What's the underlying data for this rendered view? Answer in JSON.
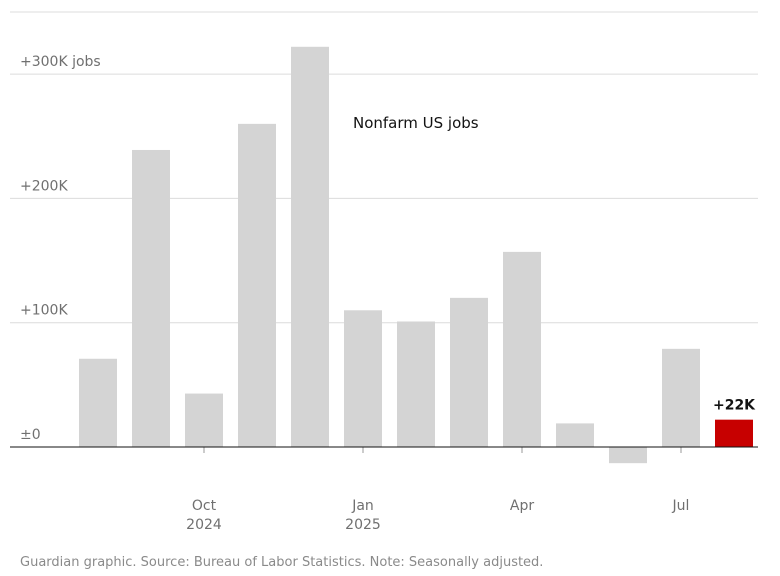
{
  "chart_data": {
    "type": "bar",
    "title": "Nonfarm US jobs",
    "source": "Guardian graphic. Source: Bureau of Labor Statistics. Note: Seasonally adjusted.",
    "categories": [
      null,
      null,
      "Oct",
      null,
      null,
      "Jan",
      null,
      null,
      "Apr",
      null,
      null,
      "Jul",
      null
    ],
    "years": [
      null,
      null,
      "2024",
      null,
      null,
      "2025",
      null,
      null,
      null,
      null,
      null,
      null,
      null
    ],
    "values": [
      71,
      239,
      43,
      260,
      322,
      110,
      101,
      120,
      157,
      19,
      -13,
      79,
      22
    ],
    "value_labels": [
      null,
      null,
      null,
      null,
      null,
      null,
      null,
      null,
      null,
      null,
      null,
      null,
      "+22K"
    ],
    "colors": [
      "#d4d4d4",
      "#d4d4d4",
      "#d4d4d4",
      "#d4d4d4",
      "#d4d4d4",
      "#d4d4d4",
      "#d4d4d4",
      "#d4d4d4",
      "#d4d4d4",
      "#d4d4d4",
      "#d4d4d4",
      "#d4d4d4",
      "#c70000"
    ],
    "ylim": [
      -30,
      350
    ],
    "yticks": [
      {
        "value": 0,
        "label": "±0"
      },
      {
        "value": 100,
        "label": "+100K"
      },
      {
        "value": 200,
        "label": "+200K"
      },
      {
        "value": 300,
        "label": "+300K jobs"
      }
    ],
    "grid": true
  }
}
